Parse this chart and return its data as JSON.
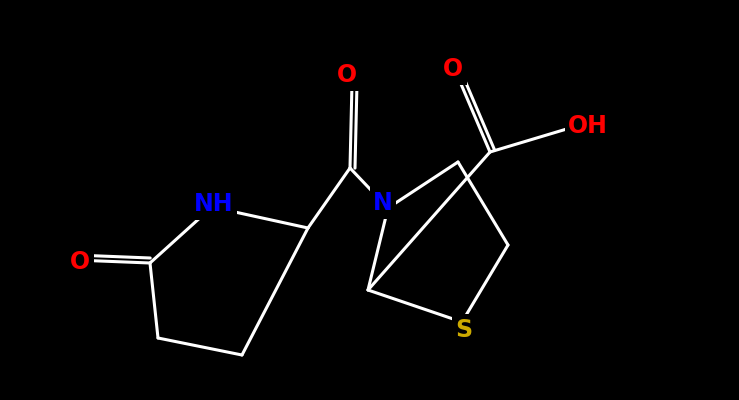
{
  "background_color": "#000000",
  "bond_color": "#ffffff",
  "atom_colors": {
    "O": "#ff0000",
    "N": "#0000ff",
    "S": "#ccaa00",
    "C": "#ffffff",
    "H": "#ffffff"
  },
  "figsize": [
    7.39,
    4.0
  ],
  "dpi": 100
}
